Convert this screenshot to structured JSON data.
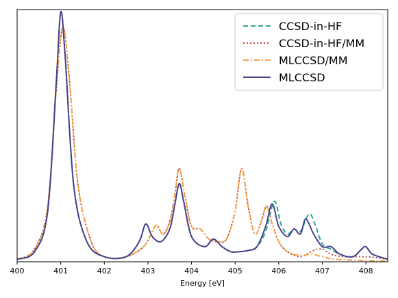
{
  "chart_data": {
    "type": "line",
    "title": "",
    "xlabel": "Energy [eV]",
    "ylabel": "",
    "xlim": [
      400,
      408.5
    ],
    "ylim": [
      0,
      1.0
    ],
    "x_ticks": [
      400,
      401,
      402,
      403,
      404,
      405,
      406,
      407,
      408
    ],
    "y_ticks_shown": false,
    "grid": false,
    "legend_position": "top-right",
    "series": [
      {
        "name": "CCSD-in-HF",
        "color": "#2ca58d",
        "dash": "dashed",
        "points": [
          [
            400,
            0.01
          ],
          [
            400.4,
            0.04
          ],
          [
            400.7,
            0.2
          ],
          [
            400.9,
            0.72
          ],
          [
            401.0,
            0.99
          ],
          [
            401.1,
            0.82
          ],
          [
            401.3,
            0.3
          ],
          [
            401.6,
            0.08
          ],
          [
            402.0,
            0.02
          ],
          [
            402.5,
            0.02
          ],
          [
            402.8,
            0.08
          ],
          [
            402.95,
            0.15
          ],
          [
            403.1,
            0.1
          ],
          [
            403.3,
            0.08
          ],
          [
            403.5,
            0.13
          ],
          [
            403.62,
            0.23
          ],
          [
            403.72,
            0.31
          ],
          [
            403.82,
            0.24
          ],
          [
            404.0,
            0.1
          ],
          [
            404.3,
            0.06
          ],
          [
            404.5,
            0.09
          ],
          [
            404.7,
            0.06
          ],
          [
            404.9,
            0.04
          ],
          [
            405.1,
            0.04
          ],
          [
            405.3,
            0.045
          ],
          [
            405.5,
            0.06
          ],
          [
            405.7,
            0.12
          ],
          [
            405.9,
            0.24
          ],
          [
            406.05,
            0.15
          ],
          [
            406.2,
            0.11
          ],
          [
            406.35,
            0.13
          ],
          [
            406.5,
            0.12
          ],
          [
            406.7,
            0.19
          ],
          [
            406.85,
            0.14
          ],
          [
            407.0,
            0.07
          ],
          [
            407.2,
            0.05
          ],
          [
            407.4,
            0.03
          ],
          [
            407.7,
            0.02
          ],
          [
            407.9,
            0.05
          ],
          [
            408.0,
            0.06
          ],
          [
            408.15,
            0.03
          ],
          [
            408.5,
            0.01
          ]
        ]
      },
      {
        "name": "CCSD-in-HF/MM",
        "color": "#b5453c",
        "dash": "dotted",
        "points": [
          [
            400,
            0.01
          ],
          [
            400.4,
            0.05
          ],
          [
            400.7,
            0.22
          ],
          [
            400.9,
            0.69
          ],
          [
            401.05,
            0.93
          ],
          [
            401.2,
            0.72
          ],
          [
            401.4,
            0.3
          ],
          [
            401.7,
            0.08
          ],
          [
            402.0,
            0.02
          ],
          [
            402.5,
            0.02
          ],
          [
            402.9,
            0.06
          ],
          [
            403.1,
            0.12
          ],
          [
            403.2,
            0.145
          ],
          [
            403.35,
            0.11
          ],
          [
            403.5,
            0.16
          ],
          [
            403.62,
            0.27
          ],
          [
            403.72,
            0.37
          ],
          [
            403.85,
            0.26
          ],
          [
            404.0,
            0.14
          ],
          [
            404.2,
            0.13
          ],
          [
            404.4,
            0.09
          ],
          [
            404.6,
            0.08
          ],
          [
            404.8,
            0.09
          ],
          [
            405.0,
            0.2
          ],
          [
            405.15,
            0.37
          ],
          [
            405.3,
            0.22
          ],
          [
            405.45,
            0.11
          ],
          [
            405.6,
            0.16
          ],
          [
            405.72,
            0.22
          ],
          [
            405.85,
            0.15
          ],
          [
            406.0,
            0.08
          ],
          [
            406.2,
            0.04
          ],
          [
            406.5,
            0.02
          ],
          [
            406.8,
            0.045
          ],
          [
            407.0,
            0.05
          ],
          [
            407.2,
            0.03
          ],
          [
            407.5,
            0.02
          ],
          [
            408.0,
            0.02
          ],
          [
            408.5,
            0.01
          ]
        ]
      },
      {
        "name": "MLCCSD/MM",
        "color": "#f4a24b",
        "dash": "dashdot",
        "points": [
          [
            400,
            0.01
          ],
          [
            400.4,
            0.05
          ],
          [
            400.7,
            0.22
          ],
          [
            400.9,
            0.69
          ],
          [
            401.05,
            0.93
          ],
          [
            401.2,
            0.72
          ],
          [
            401.4,
            0.3
          ],
          [
            401.7,
            0.08
          ],
          [
            402.0,
            0.02
          ],
          [
            402.5,
            0.02
          ],
          [
            402.9,
            0.06
          ],
          [
            403.1,
            0.12
          ],
          [
            403.2,
            0.145
          ],
          [
            403.35,
            0.11
          ],
          [
            403.5,
            0.16
          ],
          [
            403.62,
            0.27
          ],
          [
            403.72,
            0.37
          ],
          [
            403.85,
            0.26
          ],
          [
            404.0,
            0.14
          ],
          [
            404.2,
            0.13
          ],
          [
            404.4,
            0.09
          ],
          [
            404.6,
            0.08
          ],
          [
            404.8,
            0.09
          ],
          [
            405.0,
            0.2
          ],
          [
            405.15,
            0.37
          ],
          [
            405.3,
            0.22
          ],
          [
            405.45,
            0.11
          ],
          [
            405.6,
            0.16
          ],
          [
            405.72,
            0.22
          ],
          [
            405.85,
            0.15
          ],
          [
            406.0,
            0.08
          ],
          [
            406.2,
            0.04
          ],
          [
            406.5,
            0.025
          ],
          [
            406.75,
            0.03
          ],
          [
            407.0,
            0.02
          ],
          [
            407.3,
            0.01
          ],
          [
            408.0,
            0.005
          ],
          [
            408.5,
            0.003
          ]
        ]
      },
      {
        "name": "MLCCSD",
        "color": "#47418a",
        "dash": "solid",
        "points": [
          [
            400,
            0.01
          ],
          [
            400.4,
            0.04
          ],
          [
            400.7,
            0.2
          ],
          [
            400.9,
            0.72
          ],
          [
            401.0,
            0.99
          ],
          [
            401.1,
            0.82
          ],
          [
            401.3,
            0.3
          ],
          [
            401.6,
            0.08
          ],
          [
            402.0,
            0.02
          ],
          [
            402.5,
            0.02
          ],
          [
            402.8,
            0.08
          ],
          [
            402.95,
            0.15
          ],
          [
            403.1,
            0.1
          ],
          [
            403.3,
            0.08
          ],
          [
            403.5,
            0.13
          ],
          [
            403.62,
            0.23
          ],
          [
            403.72,
            0.31
          ],
          [
            403.82,
            0.24
          ],
          [
            404.0,
            0.1
          ],
          [
            404.3,
            0.06
          ],
          [
            404.5,
            0.09
          ],
          [
            404.7,
            0.06
          ],
          [
            404.9,
            0.04
          ],
          [
            405.1,
            0.04
          ],
          [
            405.3,
            0.045
          ],
          [
            405.5,
            0.06
          ],
          [
            405.7,
            0.14
          ],
          [
            405.85,
            0.23
          ],
          [
            406.0,
            0.14
          ],
          [
            406.2,
            0.1
          ],
          [
            406.35,
            0.13
          ],
          [
            406.5,
            0.11
          ],
          [
            406.62,
            0.17
          ],
          [
            406.8,
            0.11
          ],
          [
            407.0,
            0.06
          ],
          [
            407.2,
            0.06
          ],
          [
            407.4,
            0.03
          ],
          [
            407.7,
            0.02
          ],
          [
            407.9,
            0.05
          ],
          [
            408.0,
            0.06
          ],
          [
            408.15,
            0.03
          ],
          [
            408.5,
            0.01
          ]
        ]
      }
    ]
  }
}
